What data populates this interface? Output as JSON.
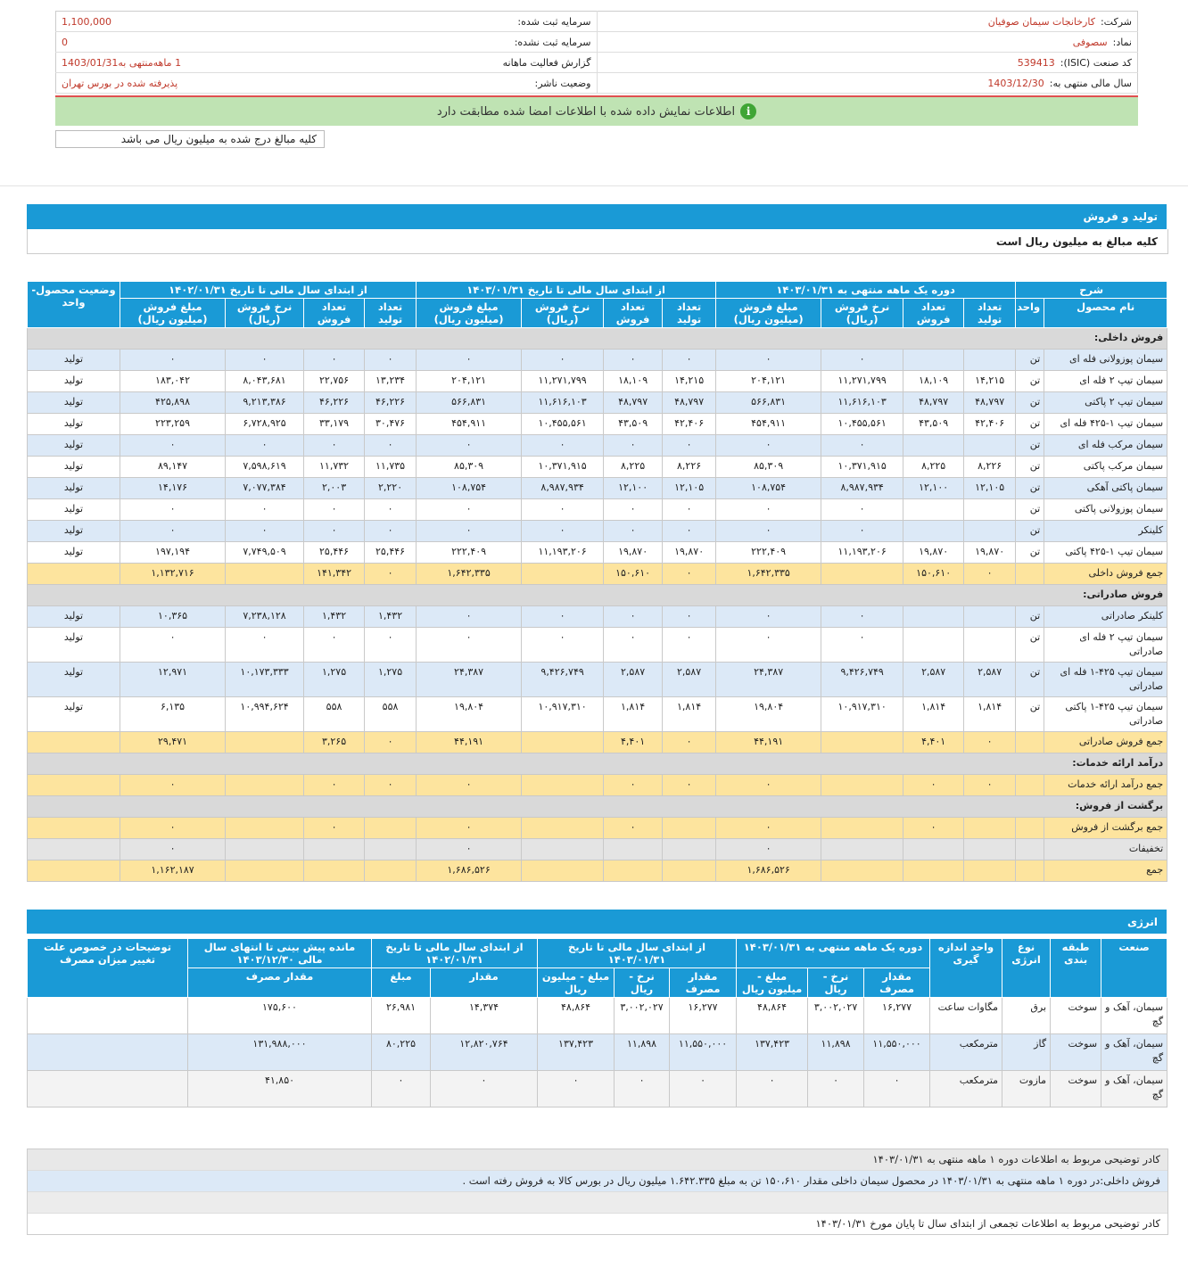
{
  "header": {
    "right": [
      {
        "label": "شرکت:",
        "value": "کارخانجات سیمان صوفیان"
      },
      {
        "label": "نماد:",
        "value": "سصوفی"
      },
      {
        "label": "کد صنعت (ISIC):",
        "value": "539413"
      },
      {
        "label": "سال مالی منتهی به:",
        "value": "1403/12/30"
      }
    ],
    "left": [
      {
        "label": "سرمایه ثبت شده:",
        "value": "1,100,000"
      },
      {
        "label": "سرمایه ثبت نشده:",
        "value": "0"
      },
      {
        "label": "گزارش فعالیت ماهانه",
        "value": "1 ماهه‌منتهی به1403/01/31"
      },
      {
        "label": "وضعیت ناشر:",
        "value": "پذیرفته شده در بورس تهران"
      }
    ],
    "notice": "اطلاعات نمایش داده شده با اطلاعات امضا شده مطابقت دارد",
    "unit_note": "کلیه مبالغ درج شده به میلیون ریال می باشد"
  },
  "production": {
    "title": "تولید و فروش",
    "subtitle": "کلیه مبالغ به میلیون ریال است",
    "top": [
      "شرح",
      "دوره یک ماهه منتهی به ۱۴۰۳/۰۱/۳۱",
      "از ابتدای سال مالی تا تاریخ ۱۴۰۳/۰۱/۳۱",
      "از ابتدای سال مالی تا تاریخ ۱۴۰۲/۰۱/۳۱",
      "وضعیت محصول-واحد"
    ],
    "sub": [
      "نام محصول",
      "واحد",
      "تعداد تولید",
      "تعداد فروش",
      "نرخ فروش (ریال)",
      "مبلغ فروش (میلیون ریال)",
      "تعداد تولید",
      "تعداد فروش",
      "نرخ فروش (ریال)",
      "مبلغ فروش (میلیون ریال)",
      "تعداد تولید",
      "تعداد فروش",
      "نرخ فروش (ریال)",
      "مبلغ فروش (میلیون ریال)"
    ],
    "rows": [
      {
        "section": "فروش داخلی:"
      },
      {
        "item": [
          "سیمان پوزولانی فله ای",
          "تن",
          null,
          null,
          "۰",
          "۰",
          "۰",
          "۰",
          "۰",
          "۰",
          "۰",
          "۰",
          "۰",
          "۰",
          "تولید"
        ]
      },
      {
        "item": [
          "سیمان تیپ ۲ فله ای",
          "تن",
          "۱۴,۲۱۵",
          "۱۸,۱۰۹",
          "۱۱,۲۷۱,۷۹۹",
          "۲۰۴,۱۲۱",
          "۱۴,۲۱۵",
          "۱۸,۱۰۹",
          "۱۱,۲۷۱,۷۹۹",
          "۲۰۴,۱۲۱",
          "۱۳,۲۳۴",
          "۲۲,۷۵۶",
          "۸,۰۴۳,۶۸۱",
          "۱۸۳,۰۴۲",
          "تولید"
        ]
      },
      {
        "item": [
          "سیمان تیپ ۲ پاکتی",
          "تن",
          "۴۸,۷۹۷",
          "۴۸,۷۹۷",
          "۱۱,۶۱۶,۱۰۳",
          "۵۶۶,۸۳۱",
          "۴۸,۷۹۷",
          "۴۸,۷۹۷",
          "۱۱,۶۱۶,۱۰۳",
          "۵۶۶,۸۳۱",
          "۴۶,۲۲۶",
          "۴۶,۲۲۶",
          "۹,۲۱۳,۳۸۶",
          "۴۲۵,۸۹۸",
          "تولید"
        ]
      },
      {
        "item": [
          "سیمان تیپ ۱-۴۲۵ فله ای",
          "تن",
          "۴۲,۴۰۶",
          "۴۳,۵۰۹",
          "۱۰,۴۵۵,۵۶۱",
          "۴۵۴,۹۱۱",
          "۴۲,۴۰۶",
          "۴۳,۵۰۹",
          "۱۰,۴۵۵,۵۶۱",
          "۴۵۴,۹۱۱",
          "۳۰,۴۷۶",
          "۳۳,۱۷۹",
          "۶,۷۲۸,۹۲۵",
          "۲۲۳,۲۵۹",
          "تولید"
        ]
      },
      {
        "item": [
          "سیمان مرکب فله ای",
          "تن",
          null,
          null,
          "۰",
          "۰",
          "۰",
          "۰",
          "۰",
          "۰",
          "۰",
          "۰",
          "۰",
          "۰",
          "تولید"
        ]
      },
      {
        "item": [
          "سیمان مرکب پاکتی",
          "تن",
          "۸,۲۲۶",
          "۸,۲۲۵",
          "۱۰,۳۷۱,۹۱۵",
          "۸۵,۳۰۹",
          "۸,۲۲۶",
          "۸,۲۲۵",
          "۱۰,۳۷۱,۹۱۵",
          "۸۵,۳۰۹",
          "۱۱,۷۳۵",
          "۱۱,۷۳۲",
          "۷,۵۹۸,۶۱۹",
          "۸۹,۱۴۷",
          "تولید"
        ]
      },
      {
        "item": [
          "سیمان پاکتی آهکی",
          "تن",
          "۱۲,۱۰۵",
          "۱۲,۱۰۰",
          "۸,۹۸۷,۹۳۴",
          "۱۰۸,۷۵۴",
          "۱۲,۱۰۵",
          "۱۲,۱۰۰",
          "۸,۹۸۷,۹۳۴",
          "۱۰۸,۷۵۴",
          "۲,۲۲۰",
          "۲,۰۰۳",
          "۷,۰۷۷,۳۸۴",
          "۱۴,۱۷۶",
          "تولید"
        ]
      },
      {
        "item": [
          "سیمان پوزولانی پاکتی",
          "تن",
          null,
          null,
          "۰",
          "۰",
          "۰",
          "۰",
          "۰",
          "۰",
          "۰",
          "۰",
          "۰",
          "۰",
          "تولید"
        ]
      },
      {
        "item": [
          "کلینکر",
          "تن",
          null,
          null,
          "۰",
          "۰",
          "۰",
          "۰",
          "۰",
          "۰",
          "۰",
          "۰",
          "۰",
          "۰",
          "تولید"
        ]
      },
      {
        "item": [
          "سیمان تیپ ۱-۴۲۵ پاکتی",
          "تن",
          "۱۹,۸۷۰",
          "۱۹,۸۷۰",
          "۱۱,۱۹۳,۲۰۶",
          "۲۲۲,۴۰۹",
          "۱۹,۸۷۰",
          "۱۹,۸۷۰",
          "۱۱,۱۹۳,۲۰۶",
          "۲۲۲,۴۰۹",
          "۲۵,۴۴۶",
          "۲۵,۴۴۶",
          "۷,۷۴۹,۵۰۹",
          "۱۹۷,۱۹۴",
          "تولید"
        ]
      },
      {
        "total": [
          "جمع فروش داخلی",
          null,
          "۰",
          "۱۵۰,۶۱۰",
          null,
          "۱,۶۴۲,۳۳۵",
          "۰",
          "۱۵۰,۶۱۰",
          null,
          "۱,۶۴۲,۳۳۵",
          "۰",
          "۱۴۱,۳۴۲",
          null,
          "۱,۱۳۲,۷۱۶",
          null
        ]
      },
      {
        "section": "فروش صادراتی:"
      },
      {
        "item": [
          "کلینکر صادراتی",
          "تن",
          null,
          null,
          "۰",
          "۰",
          "۰",
          "۰",
          "۰",
          "۰",
          "۱,۴۳۲",
          "۱,۴۳۲",
          "۷,۲۳۸,۱۲۸",
          "۱۰,۳۶۵",
          "تولید"
        ]
      },
      {
        "item": [
          "سیمان تیپ ۲ فله ای صادراتی",
          "تن",
          null,
          null,
          "۰",
          "۰",
          "۰",
          "۰",
          "۰",
          "۰",
          "۰",
          "۰",
          "۰",
          "۰",
          "تولید"
        ]
      },
      {
        "item": [
          "سیمان تیپ ۴۲۵-۱ فله ای صادراتی",
          "تن",
          "۲,۵۸۷",
          "۲,۵۸۷",
          "۹,۴۲۶,۷۴۹",
          "۲۴,۳۸۷",
          "۲,۵۸۷",
          "۲,۵۸۷",
          "۹,۴۲۶,۷۴۹",
          "۲۴,۳۸۷",
          "۱,۲۷۵",
          "۱,۲۷۵",
          "۱۰,۱۷۳,۳۳۳",
          "۱۲,۹۷۱",
          "تولید"
        ]
      },
      {
        "item": [
          "سیمان تیپ ۴۲۵-۱ پاکتی صادراتی",
          "تن",
          "۱,۸۱۴",
          "۱,۸۱۴",
          "۱۰,۹۱۷,۳۱۰",
          "۱۹,۸۰۴",
          "۱,۸۱۴",
          "۱,۸۱۴",
          "۱۰,۹۱۷,۳۱۰",
          "۱۹,۸۰۴",
          "۵۵۸",
          "۵۵۸",
          "۱۰,۹۹۴,۶۲۴",
          "۶,۱۳۵",
          "تولید"
        ]
      },
      {
        "total": [
          "جمع فروش صادراتی",
          null,
          "۰",
          "۴,۴۰۱",
          null,
          "۴۴,۱۹۱",
          "۰",
          "۴,۴۰۱",
          null,
          "۴۴,۱۹۱",
          "۰",
          "۳,۲۶۵",
          null,
          "۲۹,۴۷۱",
          null
        ]
      },
      {
        "section": "درآمد ارائه خدمات:"
      },
      {
        "total": [
          "جمع درآمد ارائه خدمات",
          null,
          "۰",
          "۰",
          null,
          "۰",
          "۰",
          "۰",
          null,
          "۰",
          "۰",
          "۰",
          null,
          "۰",
          null
        ]
      },
      {
        "section": "برگشت از فروش:"
      },
      {
        "total": [
          "جمع برگشت از فروش",
          null,
          null,
          "۰",
          null,
          "۰",
          null,
          "۰",
          null,
          "۰",
          null,
          "۰",
          null,
          "۰",
          null
        ]
      },
      {
        "other": [
          "تخفیفات",
          null,
          null,
          null,
          null,
          "۰",
          null,
          null,
          null,
          "۰",
          null,
          null,
          null,
          "۰",
          null
        ]
      },
      {
        "total": [
          "جمع",
          null,
          null,
          null,
          null,
          "۱,۶۸۶,۵۲۶",
          null,
          null,
          null,
          "۱,۶۸۶,۵۲۶",
          null,
          null,
          null,
          "۱,۱۶۲,۱۸۷",
          null
        ]
      }
    ]
  },
  "energy": {
    "title": "انرژی",
    "top": [
      "صنعت",
      "طبقه بندی",
      "نوع انرژی",
      "واحد اندازه گیری",
      "دوره یک ماهه منتهی به ۱۴۰۳/۰۱/۳۱",
      "از ابتدای سال مالی تا تاریخ ۱۴۰۳/۰۱/۳۱",
      "از ابتدای سال مالی تا تاریخ ۱۴۰۲/۰۱/۳۱",
      "مانده پیش بینی تا انتهای سال مالی ۱۴۰۳/۱۲/۳۰",
      "توضیحات در خصوص علت تغییر میزان مصرف"
    ],
    "sub": [
      "مقدار مصرف",
      "نرخ - ریال",
      "مبلغ - میلیون ریال",
      "مقدار مصرف",
      "نرخ - ریال",
      "مبلغ - میلیون ریال",
      "مقدار",
      "مبلغ",
      "مقدار مصرف"
    ],
    "rows": [
      [
        "سیمان، آهک و گچ",
        "سوخت",
        "برق",
        "مگاوات ساعت",
        "۱۶,۲۷۷",
        "۳,۰۰۲,۰۲۷",
        "۴۸,۸۶۴",
        "۱۶,۲۷۷",
        "۳,۰۰۲,۰۲۷",
        "۴۸,۸۶۴",
        "۱۴,۳۷۴",
        "۲۶,۹۸۱",
        "۱۷۵,۶۰۰",
        null
      ],
      [
        "سیمان، آهک و گچ",
        "سوخت",
        "گاز",
        "مترمکعب",
        "۱۱,۵۵۰,۰۰۰",
        "۱۱,۸۹۸",
        "۱۳۷,۴۲۳",
        "۱۱,۵۵۰,۰۰۰",
        "۱۱,۸۹۸",
        "۱۳۷,۴۲۳",
        "۱۲,۸۲۰,۷۶۴",
        "۸۰,۲۲۵",
        "۱۳۱,۹۸۸,۰۰۰",
        null
      ],
      [
        "سیمان، آهک و گچ",
        "سوخت",
        "مازوت",
        "مترمکعب",
        "۰",
        "۰",
        "۰",
        "۰",
        "۰",
        "۰",
        "۰",
        "۰",
        "۴۱,۸۵۰",
        null
      ]
    ]
  },
  "notes": [
    "کادر توضیحی مربوط به اطلاعات دوره ۱ ماهه منتهی به ۱۴۰۳/۰۱/۳۱",
    "فروش داخلی:در دوره ۱ ماهه منتهی به ۱۴۰۳/۰۱/۳۱ در محصول سیمان داخلی مقدار ۱۵۰،۶۱۰ تن به مبلغ ۱.۶۴۲.۳۳۵ میلیون ریال در بورس کالا به فروش رفته است .",
    "کادر توضیحی مربوط به اطلاعات تجمعی از ابتدای سال تا پایان مورخ ۱۴۰۳/۰۱/۳۱"
  ]
}
